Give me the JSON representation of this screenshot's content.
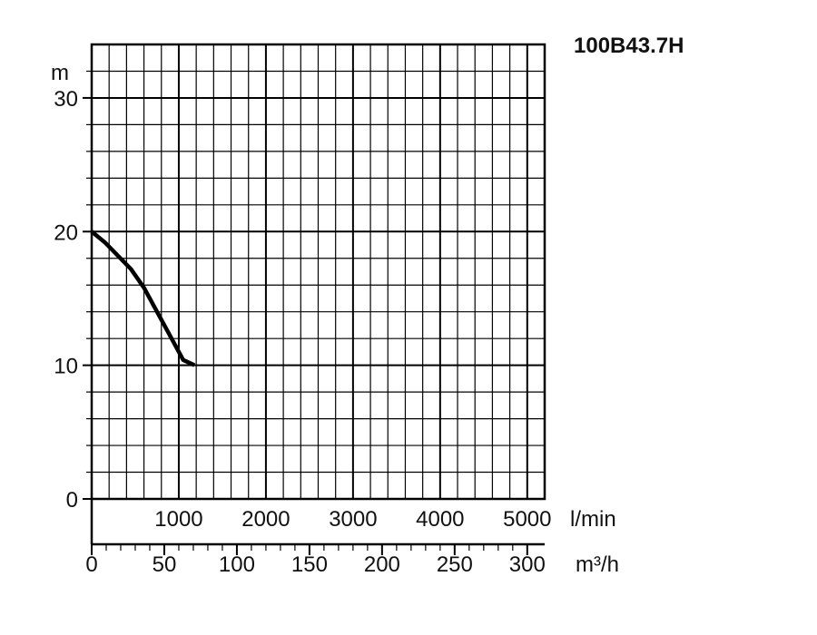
{
  "chart_data": {
    "type": "line",
    "title": "100B43.7H",
    "y_unit": "m",
    "ylim": [
      0,
      34
    ],
    "y_ticks": [
      "0",
      "10",
      "20",
      "30"
    ],
    "x_primary": {
      "unit": "l/min",
      "range": [
        0,
        5200
      ],
      "ticks": [
        "1000",
        "2000",
        "3000",
        "4000",
        "5000"
      ]
    },
    "x_secondary": {
      "unit": "m³/h",
      "range": [
        0,
        312
      ],
      "ticks": [
        "0",
        "50",
        "100",
        "150",
        "200",
        "250",
        "300"
      ]
    },
    "grid": true,
    "series": [
      {
        "x": [
          0,
          150,
          300,
          450,
          600,
          750,
          900,
          1050,
          1180
        ],
        "y": [
          20,
          19.2,
          18.2,
          17.2,
          15.8,
          14.0,
          12.2,
          10.4,
          10.0
        ]
      }
    ]
  }
}
